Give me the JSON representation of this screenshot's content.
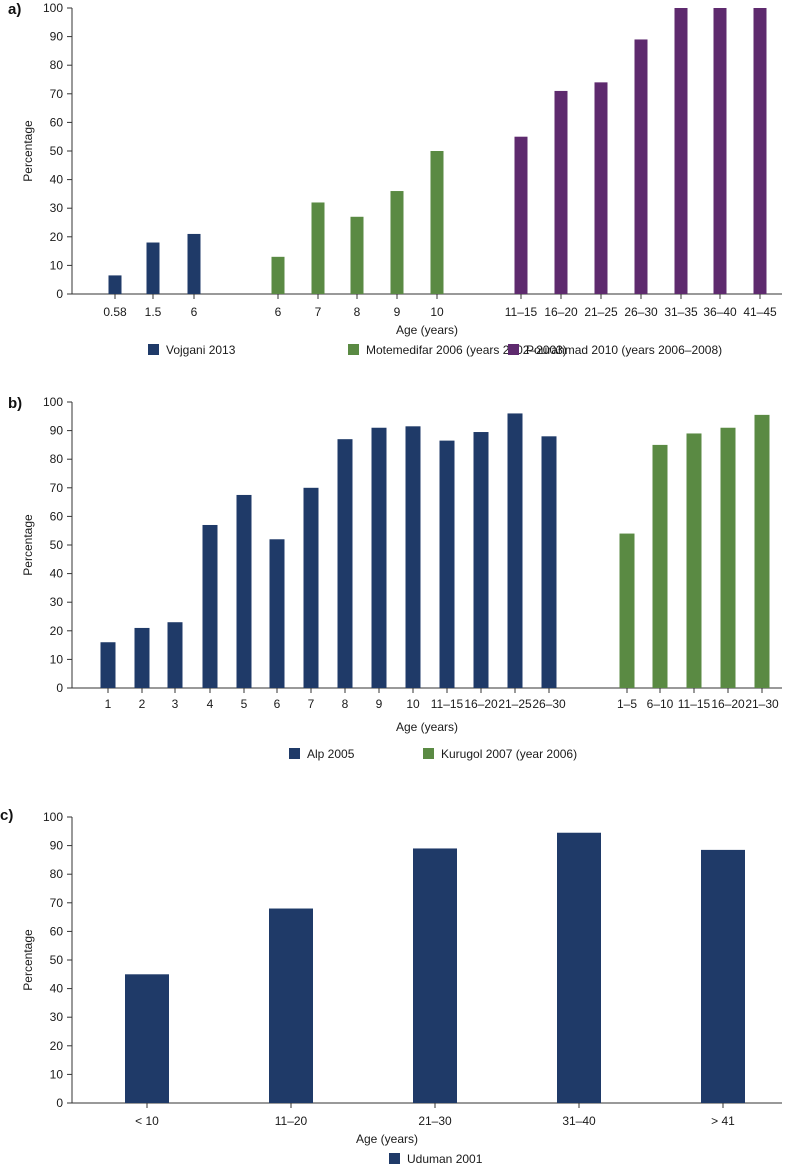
{
  "colors": {
    "navy": "#1f3a68",
    "green": "#5a8a43",
    "purple": "#5e2a6e",
    "axis": "#333333"
  },
  "chart_data": [
    {
      "panel": "a)",
      "type": "bar",
      "xlabel": "Age (years)",
      "ylabel": "Percentage",
      "ylim": [
        0,
        100
      ],
      "yticks": [
        0,
        10,
        20,
        30,
        40,
        50,
        60,
        70,
        80,
        90,
        100
      ],
      "series": [
        {
          "name": "Vojgani 2013",
          "color": "#1f3a68",
          "categories": [
            "0.58",
            "1.5",
            "6"
          ],
          "values": [
            6.5,
            18,
            21
          ]
        },
        {
          "name": "Motemedifar 2006 (years 2002–2003)",
          "color": "#5a8a43",
          "categories": [
            "6",
            "7",
            "8",
            "9",
            "10"
          ],
          "values": [
            13,
            32,
            27,
            36,
            50
          ]
        },
        {
          "name": "Pourahmad 2010 (years 2006–2008)",
          "color": "#5e2a6e",
          "categories": [
            "11–15",
            "16–20",
            "21–25",
            "26–30",
            "31–35",
            "36–40",
            "41–45"
          ],
          "values": [
            55,
            71,
            74,
            89,
            100,
            100,
            100
          ]
        }
      ]
    },
    {
      "panel": "b)",
      "type": "bar",
      "xlabel": "Age (years)",
      "ylabel": "Percentage",
      "ylim": [
        0,
        100
      ],
      "yticks": [
        0,
        10,
        20,
        30,
        40,
        50,
        60,
        70,
        80,
        90,
        100
      ],
      "series": [
        {
          "name": "Alp 2005",
          "color": "#1f3a68",
          "categories": [
            "1",
            "2",
            "3",
            "4",
            "5",
            "6",
            "7",
            "8",
            "9",
            "10",
            "11–15",
            "16–20",
            "21–25",
            "26–30"
          ],
          "values": [
            16,
            21,
            23,
            57,
            67.5,
            52,
            70,
            87,
            91,
            91.5,
            86.5,
            89.5,
            96,
            88
          ]
        },
        {
          "name": "Kurugol 2007 (year 2006)",
          "color": "#5a8a43",
          "categories": [
            "1–5",
            "6–10",
            "11–15",
            "16–20",
            "21–30"
          ],
          "values": [
            54,
            85,
            89,
            91,
            95.5
          ]
        }
      ]
    },
    {
      "panel": "c)",
      "type": "bar",
      "xlabel": "Age (years)",
      "ylabel": "Percentage",
      "ylim": [
        0,
        100
      ],
      "yticks": [
        0,
        10,
        20,
        30,
        40,
        50,
        60,
        70,
        80,
        90,
        100
      ],
      "series": [
        {
          "name": "Uduman 2001",
          "color": "#1f3a68",
          "categories": [
            "< 10",
            "11–20",
            "21–30",
            "31–40",
            "> 41"
          ],
          "values": [
            45,
            68,
            89,
            94.5,
            88.5
          ]
        }
      ]
    }
  ]
}
